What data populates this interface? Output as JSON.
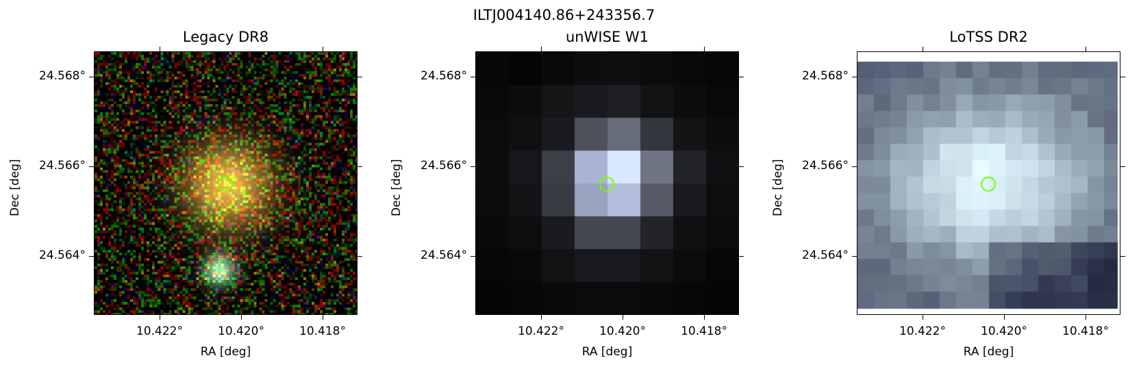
{
  "figure_title": "ILTJ004140.86+243356.7",
  "panels": [
    {
      "title": "Legacy DR8",
      "xlabel": "RA [deg]",
      "ylabel": "Dec [deg]",
      "xticks": [
        "10.422°",
        "10.420°",
        "10.418°"
      ],
      "yticks": [
        "24.568°",
        "24.566°",
        "24.564°"
      ],
      "image_type": "rgb-optical-noise-with-two-galaxies"
    },
    {
      "title": "unWISE W1",
      "xlabel": "RA [deg]",
      "ylabel": "Dec [deg]",
      "xticks": [
        "10.422°",
        "10.420°",
        "10.418°"
      ],
      "yticks": [
        "24.568°",
        "24.566°",
        "24.564°"
      ],
      "image_type": "grayscale-pixelated-infrared"
    },
    {
      "title": "LoTSS DR2",
      "xlabel": "RA [deg]",
      "ylabel": "Dec [deg]",
      "xticks": [
        "10.422°",
        "10.420°",
        "10.418°"
      ],
      "yticks": [
        "24.568°",
        "24.566°",
        "24.564°"
      ],
      "image_type": "bone-colormap-radio"
    }
  ],
  "marker_color": "#7cfc00"
}
